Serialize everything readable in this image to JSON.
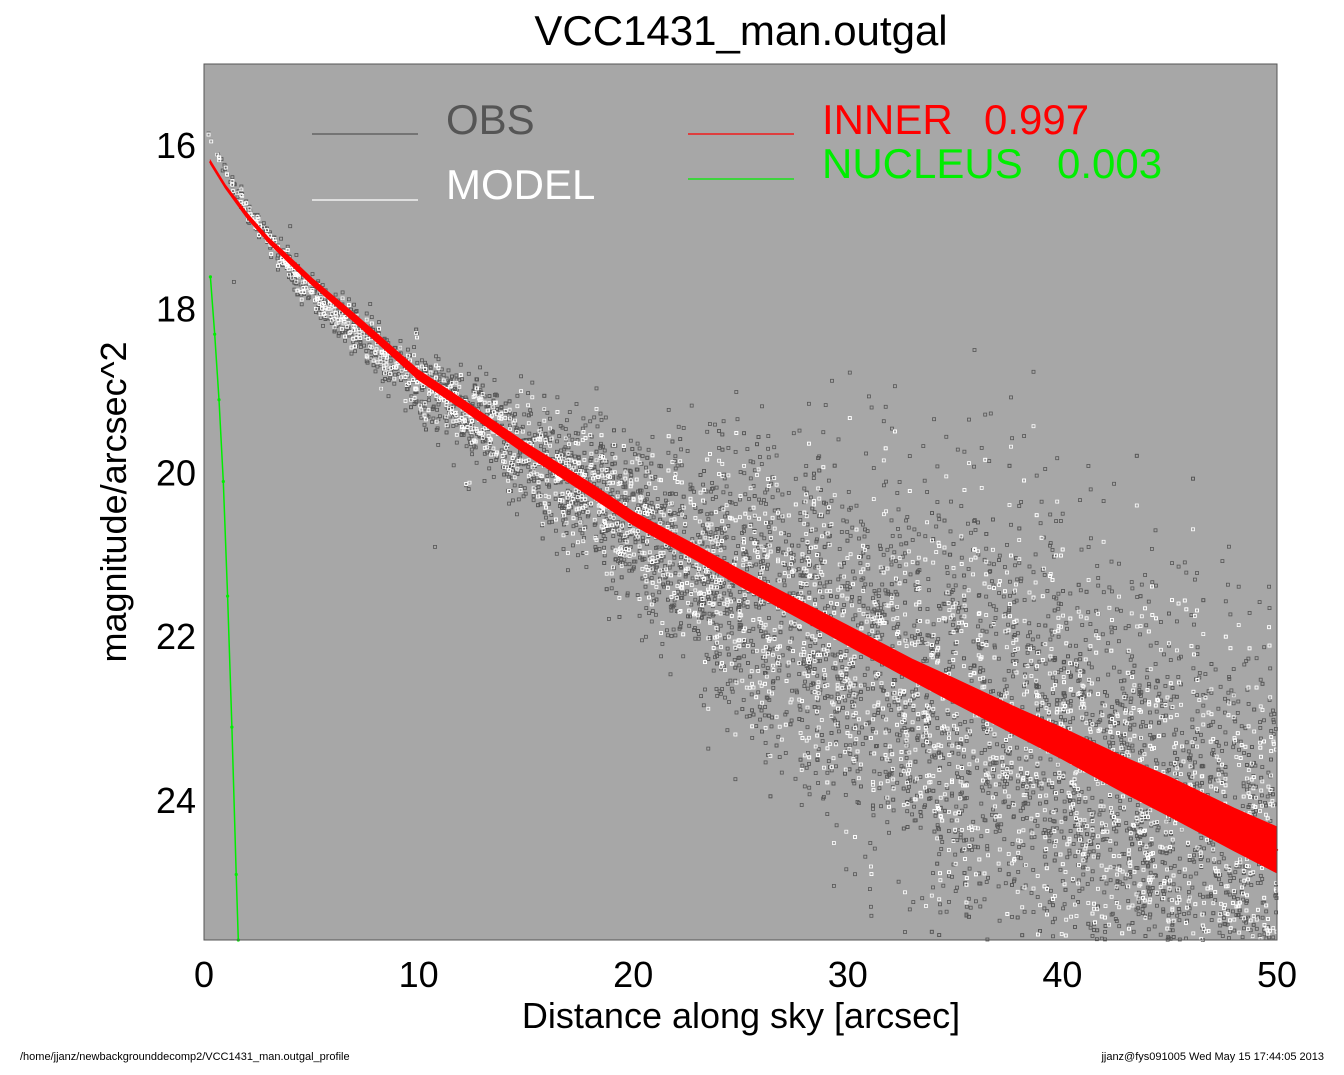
{
  "chart_data": {
    "type": "scatter",
    "title": "VCC1431_man.outgal",
    "xlabel": "Distance along sky [arcsec]",
    "ylabel": "magnitude/arcsec^2",
    "xlim": [
      0,
      50
    ],
    "ylim": [
      25.7,
      15.0
    ],
    "y_inverted": true,
    "xticks": [
      0,
      10,
      20,
      30,
      40,
      50
    ],
    "xtick_labels": [
      "0",
      "10",
      "20",
      "30",
      "40",
      "50"
    ],
    "yticks": [
      16,
      18,
      20,
      22,
      24
    ],
    "ytick_labels": [
      "16",
      "18",
      "20",
      "22",
      "24"
    ],
    "grid": false,
    "legend_position": "top",
    "legend": [
      {
        "label": "OBS",
        "value": "",
        "color": "#555555"
      },
      {
        "label": "MODEL",
        "value": "",
        "color": "#ffffff"
      },
      {
        "label": "INNER",
        "value": "0.997",
        "color": "#ff0000"
      },
      {
        "label": "NUCLEUS",
        "value": "0.003",
        "color": "#00ee00"
      }
    ],
    "series": [
      {
        "name": "OBS",
        "kind": "scatter-band",
        "color": "#555555",
        "x_range": [
          0.2,
          50
        ],
        "center_curve": [
          [
            0.2,
            15.9
          ],
          [
            2,
            16.8
          ],
          [
            5,
            17.8
          ],
          [
            10,
            18.9
          ],
          [
            15,
            19.75
          ],
          [
            20,
            20.6
          ],
          [
            25,
            21.3
          ],
          [
            30,
            22.1
          ],
          [
            35,
            22.85
          ],
          [
            40,
            23.55
          ],
          [
            45,
            24.25
          ],
          [
            50,
            24.9
          ]
        ],
        "scatter_mag": [
          [
            0,
            0.05
          ],
          [
            5,
            0.1
          ],
          [
            10,
            0.2
          ],
          [
            15,
            0.35
          ],
          [
            20,
            0.55
          ],
          [
            25,
            0.9
          ],
          [
            30,
            1.2
          ],
          [
            35,
            1.35
          ],
          [
            40,
            1.4
          ],
          [
            50,
            1.4
          ]
        ]
      },
      {
        "name": "MODEL",
        "kind": "scatter-band",
        "color": "#ffffff",
        "x_range": [
          0.2,
          50
        ],
        "center_curve": [
          [
            0.2,
            15.9
          ],
          [
            2,
            16.8
          ],
          [
            5,
            17.8
          ],
          [
            10,
            18.9
          ],
          [
            15,
            19.75
          ],
          [
            20,
            20.6
          ],
          [
            25,
            21.3
          ],
          [
            30,
            22.1
          ],
          [
            35,
            22.85
          ],
          [
            40,
            23.55
          ],
          [
            45,
            24.25
          ],
          [
            50,
            24.9
          ]
        ],
        "scatter_mag": [
          [
            0,
            0.04
          ],
          [
            5,
            0.08
          ],
          [
            10,
            0.15
          ],
          [
            15,
            0.28
          ],
          [
            20,
            0.45
          ],
          [
            25,
            0.7
          ],
          [
            30,
            1.0
          ],
          [
            35,
            1.15
          ],
          [
            40,
            1.2
          ],
          [
            50,
            1.2
          ]
        ]
      },
      {
        "name": "INNER",
        "kind": "band",
        "color": "#ff0000",
        "x": [
          0.3,
          1,
          2,
          3,
          4,
          5,
          7,
          10,
          12,
          15,
          18,
          20,
          23,
          25,
          28,
          30,
          33,
          35,
          38,
          40,
          43,
          45,
          48,
          50
        ],
        "y": [
          16.2,
          16.5,
          16.85,
          17.15,
          17.4,
          17.65,
          18.1,
          18.8,
          19.15,
          19.7,
          20.2,
          20.55,
          20.98,
          21.28,
          21.7,
          21.98,
          22.4,
          22.66,
          23.05,
          23.3,
          23.7,
          23.95,
          24.35,
          24.6
        ],
        "half_width": [
          0.02,
          0.02,
          0.03,
          0.03,
          0.04,
          0.04,
          0.05,
          0.06,
          0.06,
          0.07,
          0.08,
          0.08,
          0.09,
          0.1,
          0.11,
          0.12,
          0.13,
          0.15,
          0.17,
          0.19,
          0.22,
          0.24,
          0.26,
          0.28
        ]
      },
      {
        "name": "NUCLEUS",
        "kind": "line",
        "color": "#00ee00",
        "x": [
          0.3,
          0.5,
          0.7,
          0.9,
          1.1,
          1.3,
          1.5,
          1.6
        ],
        "y": [
          17.6,
          18.3,
          19.1,
          20.1,
          21.5,
          23.1,
          24.9,
          25.7
        ]
      }
    ]
  },
  "footer": {
    "left": "/home/jjanz/newbackgrounddecomp2/VCC1431_man.outgal_profile",
    "right": "jjanz@fys091005  Wed May 15 17:44:05 2013"
  }
}
